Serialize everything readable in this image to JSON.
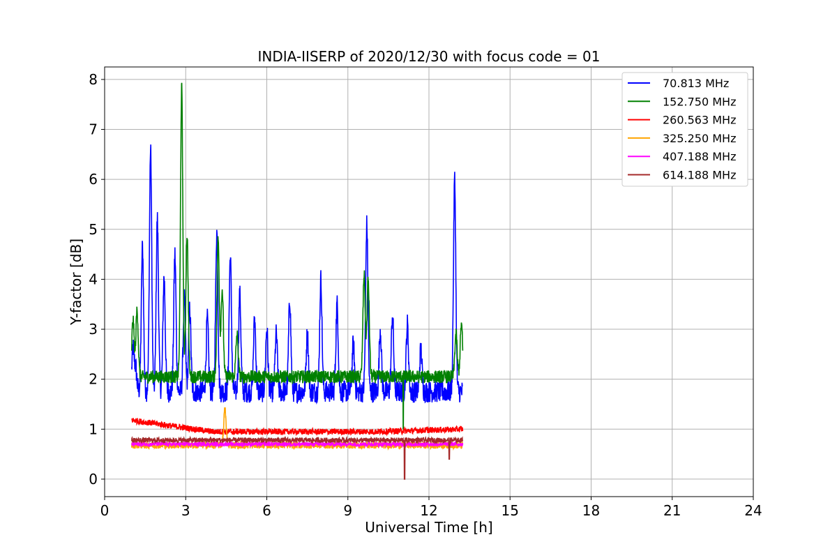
{
  "chart_data": {
    "type": "line",
    "title": "INDIA-IISERP of 2020/12/30 with focus code = 01",
    "xlabel": "Universal Time [h]",
    "ylabel": "Y-factor [dB]",
    "xlim": [
      0,
      24
    ],
    "ylim": [
      -0.35,
      8.25
    ],
    "xticks": [
      "0",
      "3",
      "6",
      "9",
      "12",
      "15",
      "18",
      "21",
      "24"
    ],
    "yticks": [
      "0",
      "1",
      "2",
      "3",
      "4",
      "5",
      "6",
      "7",
      "8"
    ],
    "grid": true,
    "legend_position": "top-right",
    "series": [
      {
        "name": " 70.813 MHz",
        "color": "#0000ff",
        "baseline": 1.75,
        "noise": 0.22,
        "peaks": [
          [
            1.05,
            2.6
          ],
          [
            1.15,
            2.2
          ],
          [
            1.4,
            4.65
          ],
          [
            1.7,
            6.6
          ],
          [
            1.95,
            5.2
          ],
          [
            2.2,
            4.05
          ],
          [
            2.6,
            4.5
          ],
          [
            2.95,
            3.6
          ],
          [
            3.15,
            3.4
          ],
          [
            3.8,
            3.2
          ],
          [
            4.15,
            4.95
          ],
          [
            4.65,
            4.45
          ],
          [
            5.0,
            3.7
          ],
          [
            5.55,
            3.2
          ],
          [
            6.0,
            3.0
          ],
          [
            6.35,
            2.9
          ],
          [
            6.85,
            3.6
          ],
          [
            7.5,
            2.9
          ],
          [
            8.0,
            4.0
          ],
          [
            8.6,
            3.5
          ],
          [
            9.2,
            2.7
          ],
          [
            9.7,
            5.1
          ],
          [
            10.2,
            3.0
          ],
          [
            10.65,
            3.3
          ],
          [
            11.2,
            3.1
          ],
          [
            11.7,
            2.6
          ],
          [
            12.95,
            6.0
          ]
        ],
        "end": 2.1
      },
      {
        "name": "152.750 MHz",
        "color": "#008000",
        "baseline": 2.05,
        "noise": 0.13,
        "peaks": [
          [
            1.05,
            3.2
          ],
          [
            1.2,
            3.4
          ],
          [
            2.85,
            7.85
          ],
          [
            3.05,
            4.9
          ],
          [
            4.2,
            4.8
          ],
          [
            4.35,
            3.8
          ],
          [
            4.9,
            2.9
          ],
          [
            9.6,
            4.1
          ],
          [
            9.75,
            4.0
          ],
          [
            13.0,
            2.9
          ],
          [
            13.2,
            3.1
          ]
        ],
        "dips": [
          [
            11.05,
            1.0
          ]
        ],
        "end": 2.1
      },
      {
        "name": "260.563 MHz",
        "color": "#ff0000",
        "baseline": 0.95,
        "noise": 0.06,
        "start": 1.18,
        "end": 1.0,
        "peaks": []
      },
      {
        "name": "325.250 MHz",
        "color": "#ffa500",
        "baseline": 0.68,
        "noise": 0.07,
        "peaks": [
          [
            4.45,
            1.4
          ]
        ],
        "end": 0.75
      },
      {
        "name": "407.188 MHz",
        "color": "#ff00ff",
        "baseline": 0.7,
        "noise": 0.04,
        "peaks": [],
        "end": 0.7
      },
      {
        "name": "614.188 MHz",
        "color": "#a52a2a",
        "baseline": 0.78,
        "noise": 0.05,
        "peaks": [],
        "dips": [
          [
            11.1,
            0.0
          ],
          [
            12.75,
            0.4
          ]
        ],
        "end": 0.78
      }
    ],
    "x_start": 1.0,
    "x_end": 13.25
  }
}
